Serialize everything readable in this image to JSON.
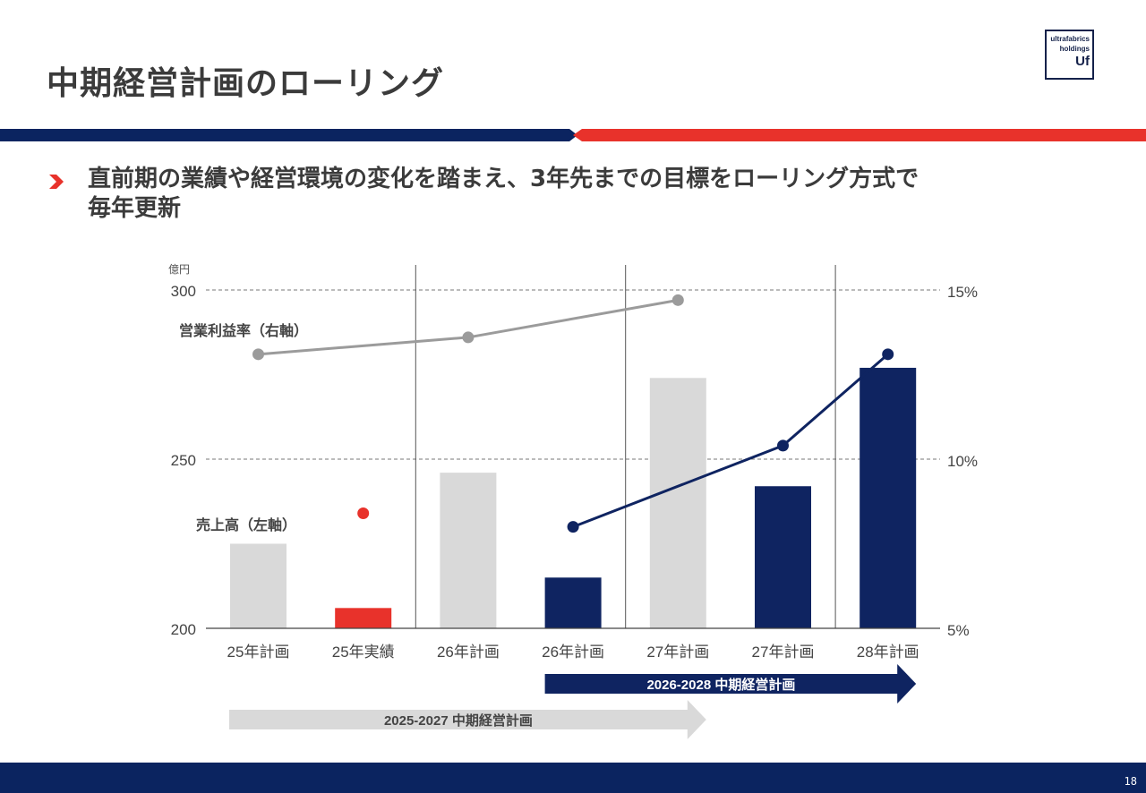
{
  "slide": {
    "title": "中期経営計画のローリング",
    "bullet_line1": "直前期の業績や経営環境の変化を踏まえ、3年先までの目標をローリング方式で",
    "bullet_line2": "毎年更新",
    "page_number": "18"
  },
  "logo": {
    "line1": "ultrafabrics",
    "line2": "holdings",
    "line3": "Uf"
  },
  "colors": {
    "navy": "#0b2460",
    "red": "#e8322b",
    "gray_bar": "#d9d9d9",
    "gray_line": "#9b9b9b",
    "bar_navy": "#0f2461"
  },
  "chart_data": {
    "type": "bar",
    "unit_label": "億円",
    "categories": [
      "25年計画",
      "25年実績",
      "26年計画",
      "26年計画",
      "27年計画",
      "27年計画",
      "28年計画"
    ],
    "ylim": [
      200,
      300
    ],
    "yticks": [
      "200",
      "250",
      "300"
    ],
    "y2lim": [
      5,
      15
    ],
    "y2ticks": [
      "5%",
      "10%",
      "15%"
    ],
    "series": [
      {
        "name": "売上高（左軸）",
        "kind": "bar",
        "values": [
          225,
          206,
          246,
          215,
          274,
          242,
          277
        ],
        "colors": [
          "gray",
          "red",
          "gray",
          "navy",
          "gray",
          "navy",
          "navy"
        ]
      },
      {
        "name": "営業利益率（右軸）・2025-2027計画",
        "kind": "line",
        "axis": "right",
        "color": "gray",
        "points": [
          {
            "index": 0,
            "value": 13.1
          },
          {
            "index": 2,
            "value": 13.6
          },
          {
            "index": 4,
            "value": 14.7
          }
        ]
      },
      {
        "name": "営業利益率（右軸）・25年実績",
        "kind": "point",
        "axis": "right",
        "color": "red",
        "points": [
          {
            "index": 1,
            "value": 8.4
          }
        ]
      },
      {
        "name": "営業利益率（右軸）・2026-2028計画",
        "kind": "line",
        "axis": "right",
        "color": "navy",
        "points": [
          {
            "index": 3,
            "value": 8.0
          },
          {
            "index": 5,
            "value": 10.4
          },
          {
            "index": 6,
            "value": 13.1
          }
        ]
      }
    ],
    "labels": {
      "margin_axis_label": "営業利益率（右軸）",
      "sales_axis_label": "売上高（左軸）"
    },
    "plans": [
      {
        "label": "2026-2028 中期経営計画",
        "from_index": 3,
        "to_index": 6,
        "color": "navy"
      },
      {
        "label": "2025-2027 中期経営計画",
        "from_index": 0,
        "to_index": 4,
        "color": "gray"
      }
    ]
  }
}
